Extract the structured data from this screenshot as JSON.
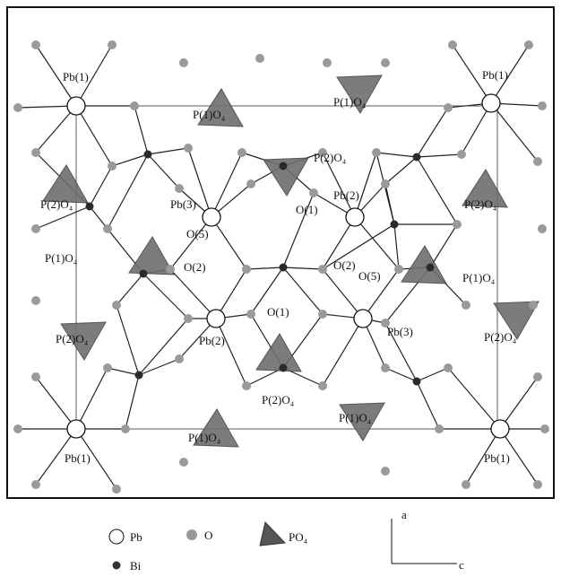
{
  "labels": [
    "Pb(1)",
    "Pb(1)",
    "Pb(1)",
    "Pb(1)",
    "P(1)O₄",
    "P(1)O₄",
    "P(1)O₄",
    "P(1)O₄",
    "P(1)O₄",
    "P(1)O₄",
    "P(2)O₄",
    "P(2)O₄",
    "P(2)O₄",
    "P(2)O₄",
    "P(2)O₄",
    "P(2)O₄",
    "Pb(3)",
    "Pb(2)",
    "O(1)",
    "O(2)",
    "O(2)",
    "O(5)",
    "O(5)",
    "Pb(2)",
    "O(1)",
    "Pb(3)"
  ],
  "legend": [
    "Pb",
    "O",
    "PO₄",
    "Bi"
  ],
  "axes": [
    "a",
    "c"
  ]
}
